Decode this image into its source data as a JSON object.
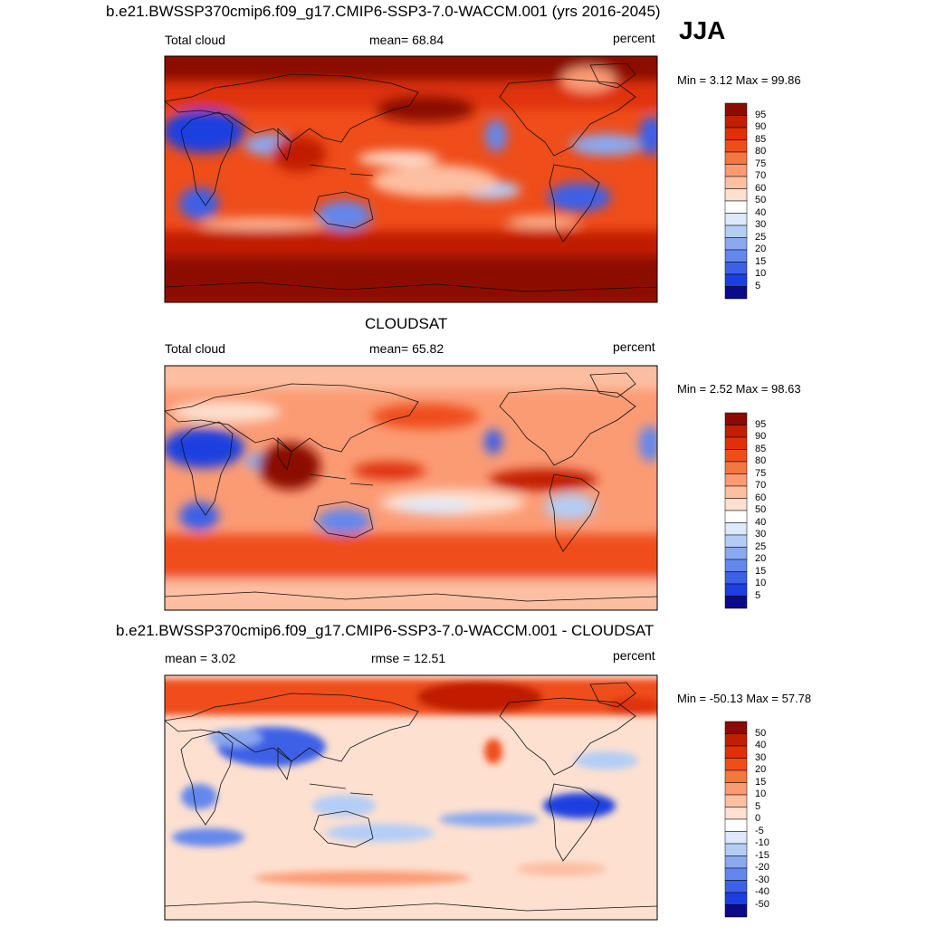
{
  "season": "JJA",
  "colors": {
    "reds": [
      "#fde0d0",
      "#fcbfa2",
      "#fb9b74",
      "#f6763f",
      "#ef4d1a",
      "#df3008",
      "#c11f02",
      "#8c0a00"
    ],
    "blues": [
      "#dde9fb",
      "#b3cdf6",
      "#8aa9f0",
      "#6387ec",
      "#3d61e6",
      "#1c3fe0",
      "#0a1fc8",
      "#0a0a8a"
    ],
    "white": "#ffffff"
  },
  "panels": [
    {
      "title": "b.e21.BWSSP370cmip6.f09_g17.CMIP6-SSP3-7.0-WACCM.001 (yrs 2016-2045)",
      "left_label": "Total cloud",
      "center_label": "mean=  68.84",
      "right_label": "percent",
      "minmax": "Min =   3.12 Max =  99.86",
      "colorbar_labels": [
        "95",
        "90",
        "85",
        "80",
        "75",
        "70",
        "60",
        "50",
        "40",
        "30",
        "25",
        "20",
        "15",
        "10",
        "5"
      ]
    },
    {
      "title": "CLOUDSAT",
      "left_label": "Total cloud",
      "center_label": "mean=  65.82",
      "right_label": "percent",
      "minmax": "Min =   2.52 Max =  98.63",
      "colorbar_labels": [
        "95",
        "90",
        "85",
        "80",
        "75",
        "70",
        "60",
        "50",
        "40",
        "30",
        "25",
        "20",
        "15",
        "10",
        "5"
      ]
    },
    {
      "title": "b.e21.BWSSP370cmip6.f09_g17.CMIP6-SSP3-7.0-WACCM.001 - CLOUDSAT",
      "left_label": "mean =   3.02",
      "center_label": "rmse =  12.51",
      "right_label": "percent",
      "minmax": "Min = -50.13 Max =  57.78",
      "colorbar_labels": [
        "50",
        "40",
        "30",
        "20",
        "15",
        "10",
        "5",
        "0",
        "-5",
        "-10",
        "-15",
        "-20",
        "-30",
        "-40",
        "-50"
      ]
    }
  ],
  "chart_data": [
    {
      "type": "heatmap",
      "title": "b.e21.BWSSP370cmip6.f09_g17.CMIP6-SSP3-7.0-WACCM.001 (yrs 2016-2045)",
      "variable": "Total cloud",
      "units": "percent",
      "mean": 68.84,
      "min": 3.12,
      "max": 99.86,
      "levels": [
        5,
        10,
        15,
        20,
        25,
        30,
        40,
        50,
        60,
        70,
        75,
        80,
        85,
        90,
        95
      ]
    },
    {
      "type": "heatmap",
      "title": "CLOUDSAT",
      "variable": "Total cloud",
      "units": "percent",
      "mean": 65.82,
      "min": 2.52,
      "max": 98.63,
      "levels": [
        5,
        10,
        15,
        20,
        25,
        30,
        40,
        50,
        60,
        70,
        75,
        80,
        85,
        90,
        95
      ]
    },
    {
      "type": "heatmap",
      "title": "b.e21.BWSSP370cmip6.f09_g17.CMIP6-SSP3-7.0-WACCM.001 - CLOUDSAT",
      "units": "percent",
      "mean": 3.02,
      "rmse": 12.51,
      "min": -50.13,
      "max": 57.78,
      "levels": [
        -50,
        -40,
        -30,
        -20,
        -15,
        -10,
        -5,
        0,
        5,
        10,
        15,
        20,
        30,
        40,
        50
      ]
    }
  ]
}
